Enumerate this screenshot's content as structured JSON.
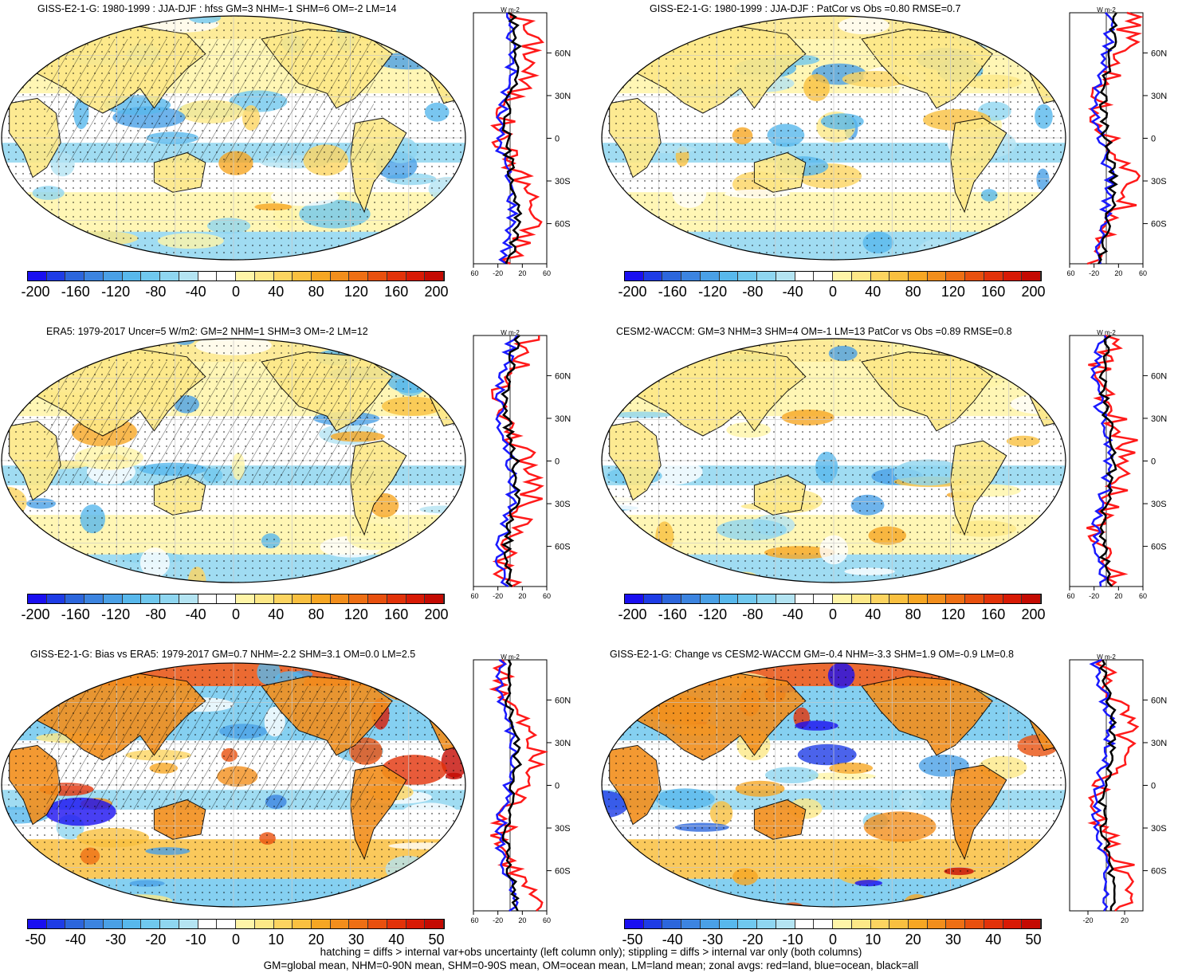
{
  "panels": [
    {
      "id": "p1",
      "title": "GISS-E2-1-G: 1980-1999 : JJA-DJF : hfss GM=3 NHM=-1 SHM=6 OM=-2 LM=14",
      "colorbar": [
        "-200",
        "-160",
        "-120",
        "-80",
        "-40",
        "0",
        "40",
        "80",
        "120",
        "160",
        "200"
      ],
      "zonal_x": [
        "-60",
        "-20",
        "20",
        "60"
      ],
      "units": "W m-2",
      "hatched": true
    },
    {
      "id": "p2",
      "title": "GISS-E2-1-G: 1980-1999 : JJA-DJF : PatCor vs Obs =0.80 RMSE=0.7",
      "colorbar": [
        "-200",
        "-160",
        "-120",
        "-80",
        "-40",
        "0",
        "40",
        "80",
        "120",
        "160",
        "200"
      ],
      "zonal_x": [
        "-60",
        "-20",
        "20",
        "60"
      ],
      "units": "W m-2",
      "hatched": false
    },
    {
      "id": "p3",
      "title": "ERA5: 1979-2017 Uncer=5 W/m2: GM=2 NHM=1 SHM=3 OM=-2 LM=12",
      "colorbar": [
        "-200",
        "-160",
        "-120",
        "-80",
        "-40",
        "0",
        "40",
        "80",
        "120",
        "160",
        "200"
      ],
      "zonal_x": [
        "-60",
        "-20",
        "20",
        "60"
      ],
      "units": "W m-2",
      "hatched": true
    },
    {
      "id": "p4",
      "title": "CESM2-WACCM: GM=3 NHM=3 SHM=4 OM=-1 LM=13 PatCor vs Obs =0.89 RMSE=0.8",
      "colorbar": [
        "-200",
        "-160",
        "-120",
        "-80",
        "-40",
        "0",
        "40",
        "80",
        "120",
        "160",
        "200"
      ],
      "zonal_x": [
        "-60",
        "-20",
        "20",
        "60"
      ],
      "units": "W m-2",
      "hatched": false
    },
    {
      "id": "p5",
      "title": "GISS-E2-1-G: Bias vs ERA5: 1979-2017 GM=0.7 NHM=-2.2 SHM=3.1 OM=0.0 LM=2.5",
      "colorbar": [
        "-50",
        "-40",
        "-30",
        "-20",
        "-10",
        "0",
        "10",
        "20",
        "30",
        "40",
        "50"
      ],
      "zonal_x": [
        "-60",
        "-20",
        "20",
        "60"
      ],
      "units": "W m-2",
      "hatched": true
    },
    {
      "id": "p6",
      "title": "GISS-E2-1-G: Change vs CESM2-WACCM GM=-0.4 NHM=-3.3 SHM=1.9 OM=-0.9 LM=0.8",
      "colorbar": [
        "-50",
        "-40",
        "-30",
        "-20",
        "-10",
        "0",
        "10",
        "20",
        "30",
        "40",
        "50"
      ],
      "zonal_x": [
        "-20",
        "20"
      ],
      "units": "W m-2",
      "hatched": false
    }
  ],
  "lat_labels": [
    "60N",
    "30N",
    "0",
    "30S",
    "60S"
  ],
  "palette": [
    "#1a0ff0",
    "#1e3ce6",
    "#2c66dc",
    "#3c84e0",
    "#4aa0e6",
    "#58b8ec",
    "#70c8ee",
    "#8fd6f0",
    "#b4e4f2",
    "#ffffff",
    "#ffffff",
    "#fff5a8",
    "#fde887",
    "#fcd460",
    "#f9c040",
    "#f6a623",
    "#f28e1c",
    "#ee6f14",
    "#e8500e",
    "#e23209",
    "#d81a05",
    "#c40a02"
  ],
  "colors": {
    "land": "#ff1a1a",
    "ocean": "#1a1aff",
    "all": "#000000",
    "ocean_fill": "#ffffff",
    "coast": "#000000"
  },
  "footer": {
    "line1": "hatching = diffs > internal var+obs uncertainty (left column only); stippling = diffs > internal var only (both columns)",
    "line2": "GM=global mean, NHM=0-90N mean, SHM=0-90S mean, OM=ocean mean, LM=land mean; zonal avgs: red=land, blue=ocean, black=all"
  }
}
